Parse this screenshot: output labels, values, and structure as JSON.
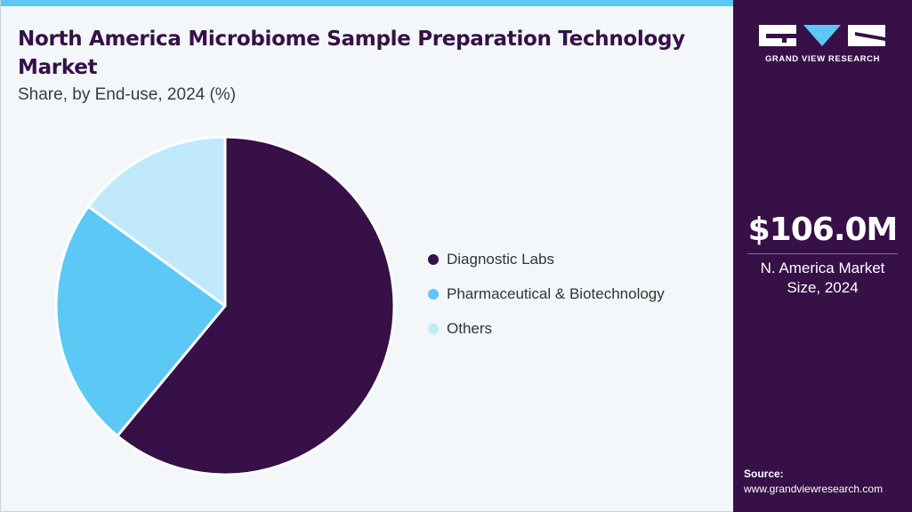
{
  "colors": {
    "accent_bar": "#5bc8f5",
    "title": "#361046",
    "sidebar_bg": "#361046",
    "panel_bg": "#f3f7fa"
  },
  "header": {
    "title": "North America Microbiome Sample Preparation Technology Market",
    "subtitle": "Share, by End-use, 2024 (%)"
  },
  "chart_data": {
    "type": "pie",
    "title": "North America Microbiome Sample Preparation Technology Market",
    "subtitle": "Share, by End-use, 2024 (%)",
    "categories": [
      "Diagnostic Labs",
      "Pharmaceutical & Biotechnology",
      "Others"
    ],
    "values": [
      61,
      24,
      15
    ],
    "colors": [
      "#361046",
      "#5bc8f5",
      "#c0e9fb"
    ],
    "legend_position": "right"
  },
  "sidebar": {
    "logo_text": "GRAND VIEW RESEARCH",
    "metric_value": "$106.0M",
    "metric_label_line1": "N. America Market",
    "metric_label_line2": "Size, 2024",
    "source_label": "Source:",
    "source_url": "www.grandviewresearch.com"
  }
}
